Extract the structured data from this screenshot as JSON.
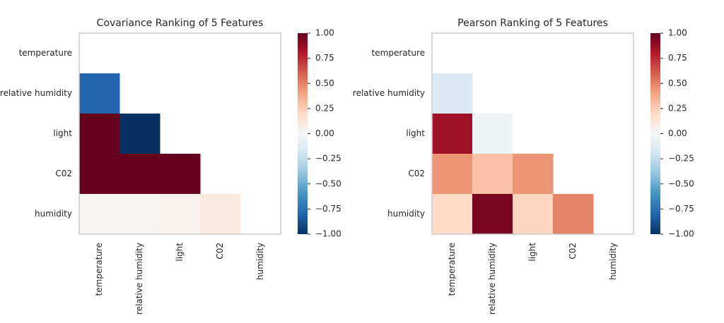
{
  "chart_data": [
    {
      "type": "heatmap",
      "title": "Covariance Ranking of 5 Features",
      "categories": [
        "temperature",
        "relative humidity",
        "light",
        "C02",
        "humidity"
      ],
      "values": [
        [
          null,
          null,
          null,
          null,
          null
        ],
        [
          -0.8,
          null,
          null,
          null,
          null
        ],
        [
          1.0,
          -1.0,
          null,
          null,
          null
        ],
        [
          1.0,
          1.0,
          1.0,
          null,
          null
        ],
        [
          0.02,
          0.02,
          0.04,
          0.1,
          null
        ]
      ],
      "clim": [
        -1,
        1
      ],
      "colors": [
        "#053061",
        "#2166ac",
        "#4393c3",
        "#92c5de",
        "#d1e5f0",
        "#f7f7f7",
        "#fddbc7",
        "#f4a582",
        "#d6604d",
        "#b2182b",
        "#67001f"
      ],
      "cticks": [
        {
          "value": 1,
          "label": "1.00"
        },
        {
          "value": 0.75,
          "label": "0.75"
        },
        {
          "value": 0.5,
          "label": "0.50"
        },
        {
          "value": 0.25,
          "label": "0.25"
        },
        {
          "value": 0,
          "label": "0.00"
        },
        {
          "value": -0.25,
          "label": "−0.25"
        },
        {
          "value": -0.5,
          "label": "−0.50"
        },
        {
          "value": -0.75,
          "label": "−0.75"
        },
        {
          "value": -1,
          "label": "−1.00"
        }
      ]
    },
    {
      "type": "heatmap",
      "title": "Pearson Ranking of 5 Features",
      "categories": [
        "temperature",
        "relative humidity",
        "light",
        "C02",
        "humidity"
      ],
      "values": [
        [
          null,
          null,
          null,
          null,
          null
        ],
        [
          -0.15,
          null,
          null,
          null,
          null
        ],
        [
          0.85,
          -0.05,
          null,
          null,
          null
        ],
        [
          0.45,
          0.3,
          0.45,
          null,
          null
        ],
        [
          0.2,
          0.95,
          0.22,
          0.5,
          null
        ]
      ],
      "clim": [
        -1,
        1
      ],
      "colors": [
        "#053061",
        "#2166ac",
        "#4393c3",
        "#92c5de",
        "#d1e5f0",
        "#f7f7f7",
        "#fddbc7",
        "#f4a582",
        "#d6604d",
        "#b2182b",
        "#67001f"
      ],
      "cticks": [
        {
          "value": 1,
          "label": "1.00"
        },
        {
          "value": 0.75,
          "label": "0.75"
        },
        {
          "value": 0.5,
          "label": "0.50"
        },
        {
          "value": 0.25,
          "label": "0.25"
        },
        {
          "value": 0,
          "label": "0.00"
        },
        {
          "value": -0.25,
          "label": "−0.25"
        },
        {
          "value": -0.5,
          "label": "−0.50"
        },
        {
          "value": -0.75,
          "label": "−0.75"
        },
        {
          "value": -1,
          "label": "−1.00"
        }
      ]
    }
  ]
}
